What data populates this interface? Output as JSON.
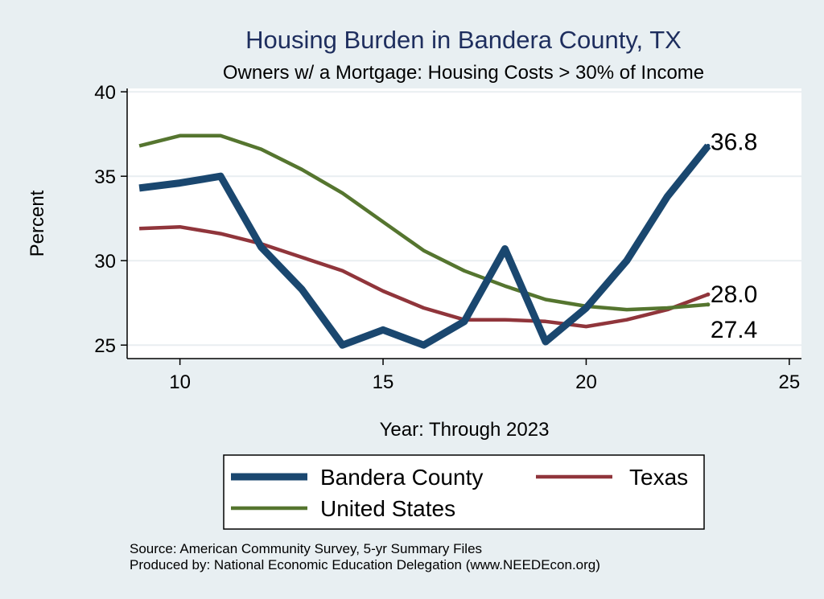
{
  "chart_data": {
    "type": "line",
    "title": "Housing Burden in Bandera County, TX",
    "subtitle": "Owners w/ a Mortgage: Housing Costs > 30% of Income",
    "xlabel": "Year: Through 2023",
    "ylabel": "Percent",
    "xlim": [
      8.7,
      25.3
    ],
    "ylim": [
      24.2,
      40.2
    ],
    "xticks": [
      10,
      15,
      20,
      25
    ],
    "yticks": [
      25,
      30,
      35,
      40
    ],
    "grid": "horizontal",
    "legend_position": "bottom",
    "series": [
      {
        "name": "Bandera County",
        "color": "#1a476f",
        "x": [
          9,
          10,
          11,
          12,
          13,
          14,
          15,
          16,
          17,
          18,
          19,
          20,
          21,
          22,
          23
        ],
        "values": [
          34.3,
          34.6,
          35.0,
          30.8,
          28.3,
          25.0,
          25.9,
          25.0,
          26.4,
          30.7,
          25.2,
          27.2,
          30.0,
          33.8,
          36.8
        ],
        "end_label": "36.8"
      },
      {
        "name": "Texas",
        "color": "#90353b",
        "x": [
          9,
          10,
          11,
          12,
          13,
          14,
          15,
          16,
          17,
          18,
          19,
          20,
          21,
          22,
          23
        ],
        "values": [
          31.9,
          32.0,
          31.6,
          31.0,
          30.2,
          29.4,
          28.2,
          27.2,
          26.5,
          26.5,
          26.4,
          26.1,
          26.5,
          27.1,
          28.0
        ],
        "end_label": "28.0"
      },
      {
        "name": "United States",
        "color": "#55752f",
        "x": [
          9,
          10,
          11,
          12,
          13,
          14,
          15,
          16,
          17,
          18,
          19,
          20,
          21,
          22,
          23
        ],
        "values": [
          36.8,
          37.4,
          37.4,
          36.6,
          35.4,
          34.0,
          32.3,
          30.6,
          29.4,
          28.5,
          27.7,
          27.3,
          27.1,
          27.2,
          27.4
        ],
        "end_label": "27.4"
      }
    ],
    "notes": [
      "Source: American Community Survey, 5-yr Summary Files",
      "Produced by: National Economic Education Delegation (www.NEEDEcon.org)"
    ]
  }
}
